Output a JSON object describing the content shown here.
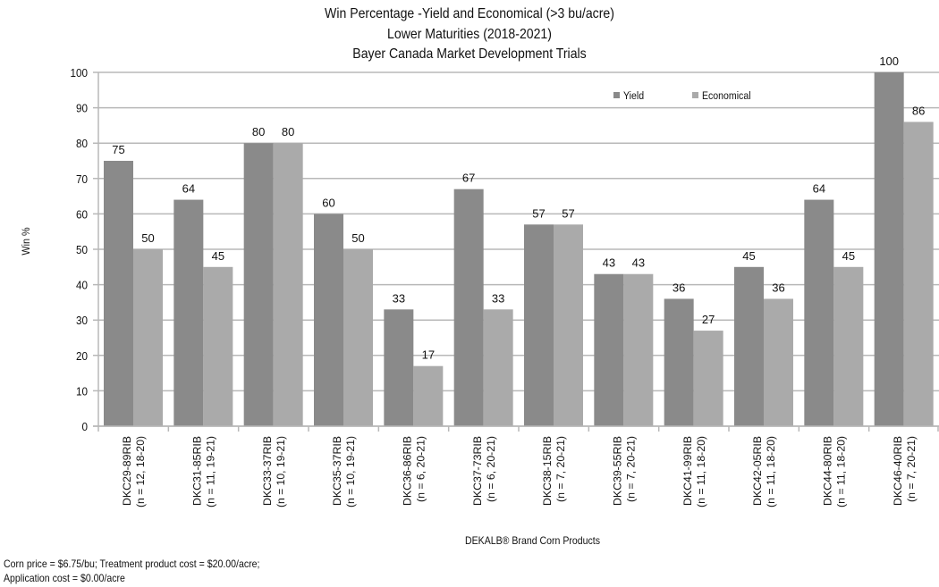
{
  "chart_data": {
    "type": "bar",
    "title": "Win Percentage -Yield and Economical (>3 bu/acre)",
    "subtitle_lines": [
      "Lower Maturities (2018-2021)",
      "Bayer Canada Market Development Trials"
    ],
    "xlabel": "DEKALB® Brand Corn Products",
    "ylabel": "Win %",
    "ylim": [
      0,
      100
    ],
    "yticks": [
      0,
      10,
      20,
      30,
      40,
      50,
      60,
      70,
      80,
      90,
      100
    ],
    "grid": true,
    "legend_position": "top-right-inside",
    "categories": [
      {
        "name": "DKC29-89RIB",
        "n": "(n = 12, 18-20)"
      },
      {
        "name": "DKC31-85RIB",
        "n": "(n = 11, 19-21)"
      },
      {
        "name": "DKC33-37RIB",
        "n": "(n = 10, 19-21)"
      },
      {
        "name": "DKC35-37RIB",
        "n": "(n = 10, 19-21)"
      },
      {
        "name": "DKC36-86RIB",
        "n": "(n = 6, 20-21)"
      },
      {
        "name": "DKC37-73RIB",
        "n": "(n = 6, 20-21)"
      },
      {
        "name": "DKC38-15RIB",
        "n": "(n = 7, 20-21)"
      },
      {
        "name": "DKC39-55RIB",
        "n": "(n = 7, 20-21)"
      },
      {
        "name": "DKC41-99RIB",
        "n": "(n = 11, 18-20)"
      },
      {
        "name": "DKC42-05RIB",
        "n": "(n = 11, 18-20)"
      },
      {
        "name": "DKC44-80RIB",
        "n": "(n = 11, 18-20)"
      },
      {
        "name": "DKC46-40RIB",
        "n": "(n = 7, 20-21)"
      }
    ],
    "series": [
      {
        "name": "Yield",
        "color": "#8a8a8a",
        "values": [
          75,
          64,
          80,
          60,
          33,
          67,
          57,
          43,
          36,
          45,
          64,
          100
        ]
      },
      {
        "name": "Economical",
        "color": "#aaaaaa",
        "values": [
          50,
          45,
          80,
          50,
          17,
          33,
          57,
          43,
          27,
          36,
          45,
          86
        ]
      }
    ]
  },
  "titles": {
    "line1": "Win Percentage -Yield and Economical (>3 bu/acre)",
    "line2": "Lower Maturities (2018-2021)",
    "line3": "Bayer Canada Market Development Trials"
  },
  "footnote": {
    "line1": "Corn price = $6.75/bu; Treatment product cost = $20.00/acre;",
    "line2": "Application cost = $0.00/acre"
  },
  "xaxis_label": "DEKALB® Brand Corn Products"
}
